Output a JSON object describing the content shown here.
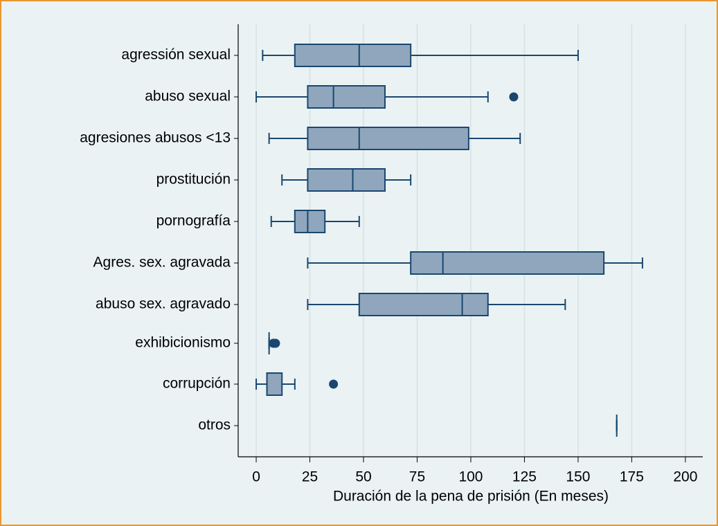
{
  "chart_data": {
    "type": "box",
    "x_label": "Duración de la pena de prisión (En meses)",
    "categories": [
      "agressión sexual",
      "abuso sexual",
      "agresiones abusos <13",
      "prostitución",
      "pornografía",
      "Agres. sex. agravada",
      "abuso sex. agravado",
      "exhibicionismo",
      "corrupción",
      "otros"
    ],
    "boxes": [
      {
        "low": 3,
        "q1": 18,
        "median": 48,
        "q3": 72,
        "high": 150,
        "outliers": []
      },
      {
        "low": 0,
        "q1": 24,
        "median": 36,
        "q3": 60,
        "high": 108,
        "outliers": [
          120
        ]
      },
      {
        "low": 6,
        "q1": 24,
        "median": 48,
        "q3": 99,
        "high": 123,
        "outliers": []
      },
      {
        "low": 12,
        "q1": 24,
        "median": 45,
        "q3": 60,
        "high": 72,
        "outliers": []
      },
      {
        "low": 7,
        "q1": 18,
        "median": 24,
        "q3": 32,
        "high": 48,
        "outliers": []
      },
      {
        "low": 24,
        "q1": 72,
        "median": 87,
        "q3": 162,
        "high": 180,
        "outliers": []
      },
      {
        "low": 24,
        "q1": 48,
        "median": 96,
        "q3": 108,
        "high": 144,
        "outliers": []
      },
      {
        "low": 6,
        "q1": 6,
        "median": 6,
        "q3": 6,
        "high": 6,
        "outliers": [
          8,
          9
        ]
      },
      {
        "low": 0,
        "q1": 5,
        "median": 5,
        "q3": 12,
        "high": 18,
        "outliers": [
          36
        ]
      },
      {
        "low": 168,
        "q1": 168,
        "median": 168,
        "q3": 168,
        "high": 168,
        "outliers": []
      }
    ],
    "xlim": [
      -8.4,
      208.1
    ],
    "xticks": [
      0,
      25,
      50,
      75,
      100,
      125,
      150,
      175,
      200
    ],
    "grid": true,
    "box_color": "#8fa6bd",
    "line_color": "#1a476f"
  }
}
